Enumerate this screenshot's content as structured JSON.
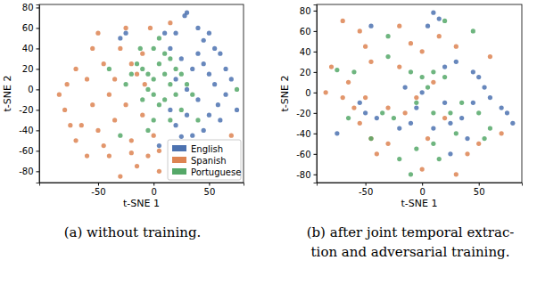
{
  "chart_data": [
    {
      "type": "scatter",
      "caption": [
        "(a) without training."
      ],
      "x_label": "t-SNE 1",
      "y_label": "t-SNE 2",
      "xlim": [
        -103,
        81
      ],
      "ylim": [
        -91,
        83
      ],
      "xticks": [
        -50,
        0,
        50
      ],
      "yticks": [
        -80,
        -60,
        -40,
        -20,
        0,
        20,
        40,
        60,
        80
      ],
      "grid": false,
      "legend": "lower right",
      "series": [
        {
          "name": "English",
          "color": "#4c72b0",
          "x": [
            30,
            28,
            40,
            50,
            45,
            55,
            60,
            65,
            70,
            65,
            58,
            50,
            60,
            45,
            35,
            25,
            40,
            30,
            20,
            35,
            25,
            15,
            10,
            40,
            50,
            30,
            20,
            55,
            75,
            45,
            5,
            15,
            -25,
            -30,
            20
          ],
          "values": [
            75,
            72,
            60,
            55,
            48,
            40,
            35,
            20,
            10,
            -5,
            -15,
            -25,
            -30,
            -40,
            -45,
            -46,
            -10,
            0,
            10,
            20,
            30,
            40,
            55,
            35,
            15,
            -25,
            -35,
            5,
            -20,
            25,
            -55,
            -20,
            55,
            50,
            55
          ]
        },
        {
          "name": "Spanish",
          "color": "#dd8452",
          "x": [
            -85,
            -80,
            -78,
            -70,
            -65,
            -70,
            -55,
            -60,
            -55,
            -45,
            -40,
            -35,
            -45,
            -40,
            -30,
            -25,
            -20,
            -15,
            -5,
            5,
            0,
            -10,
            -15,
            -25,
            -30,
            -20,
            -50,
            -20,
            -35,
            -60,
            -75,
            -10,
            5,
            -3,
            15,
            70,
            -50,
            -8
          ],
          "values": [
            -5,
            -20,
            5,
            20,
            -35,
            -50,
            40,
            10,
            -15,
            -55,
            -65,
            -30,
            25,
            -5,
            40,
            60,
            -50,
            -75,
            -65,
            -80,
            -45,
            35,
            15,
            -15,
            -85,
            -62,
            55,
            25,
            10,
            -65,
            -35,
            -25,
            -60,
            60,
            65,
            -45,
            -40,
            5
          ]
        },
        {
          "name": "Portuguese",
          "color": "#55a868",
          "x": [
            -10,
            -5,
            0,
            5,
            10,
            15,
            -15,
            -20,
            0,
            5,
            10,
            20,
            25,
            10,
            0,
            -5,
            -10,
            15,
            0,
            -5,
            25,
            30,
            35,
            20,
            -12,
            75,
            -30,
            -40,
            5,
            15,
            -25,
            40
          ],
          "values": [
            20,
            15,
            10,
            25,
            15,
            30,
            25,
            15,
            -5,
            -15,
            -10,
            -5,
            15,
            35,
            40,
            0,
            -10,
            -30,
            -30,
            -40,
            -20,
            5,
            -5,
            20,
            40,
            0,
            -45,
            20,
            50,
            5,
            5,
            -30
          ]
        }
      ]
    },
    {
      "type": "scatter",
      "caption": [
        "(b) after joint temporal extrac-",
        "tion and adversarial training."
      ],
      "x_label": "t-SNE 1",
      "y_label": "t-SNE 2",
      "xlim": [
        -93,
        88
      ],
      "ylim": [
        -88,
        86
      ],
      "xticks": [
        -50,
        0,
        50
      ],
      "yticks": [
        -80,
        -60,
        -40,
        -20,
        0,
        20,
        40,
        60,
        80
      ],
      "grid": false,
      "series": [
        {
          "name": "English",
          "color": "#4c72b0",
          "x": [
            10,
            15,
            5,
            -45,
            20,
            30,
            45,
            55,
            60,
            70,
            75,
            45,
            35,
            25,
            10,
            -10,
            -20,
            -40,
            -50,
            0,
            -5,
            20,
            40,
            25,
            -55,
            -75,
            50,
            80,
            -15
          ],
          "values": [
            78,
            72,
            65,
            65,
            25,
            30,
            20,
            5,
            -5,
            -15,
            -20,
            -10,
            -25,
            -30,
            -35,
            -30,
            -35,
            -25,
            -20,
            0,
            -15,
            -10,
            -45,
            -60,
            -10,
            -40,
            15,
            -30,
            5
          ]
        },
        {
          "name": "Spanish",
          "color": "#dd8452",
          "x": [
            -70,
            -55,
            -50,
            -45,
            -20,
            -10,
            0,
            15,
            30,
            -80,
            -65,
            -70,
            -60,
            -55,
            -45,
            -40,
            -30,
            -50,
            -30,
            -15,
            -5,
            10,
            20,
            50,
            30,
            0,
            60,
            -20,
            5,
            40,
            -85,
            70
          ],
          "values": [
            70,
            60,
            45,
            30,
            65,
            48,
            40,
            55,
            45,
            25,
            10,
            -5,
            -15,
            -30,
            -45,
            -60,
            -50,
            -5,
            -15,
            -20,
            -5,
            10,
            -25,
            -50,
            -80,
            -75,
            35,
            25,
            -45,
            -60,
            0,
            -40
          ]
        },
        {
          "name": "Portuguese",
          "color": "#55a868",
          "x": [
            -75,
            -60,
            -30,
            -10,
            0,
            10,
            20,
            5,
            -5,
            10,
            25,
            30,
            35,
            50,
            60,
            -25,
            -35,
            -45,
            -65,
            -20,
            -5,
            10,
            45,
            -30,
            55,
            15,
            -10,
            20
          ],
          "values": [
            22,
            20,
            35,
            20,
            15,
            20,
            15,
            5,
            -10,
            -20,
            -20,
            -40,
            -10,
            -20,
            -35,
            -25,
            -20,
            -45,
            -25,
            -65,
            -55,
            -50,
            60,
            55,
            -45,
            -65,
            -80,
            70
          ]
        }
      ]
    }
  ]
}
